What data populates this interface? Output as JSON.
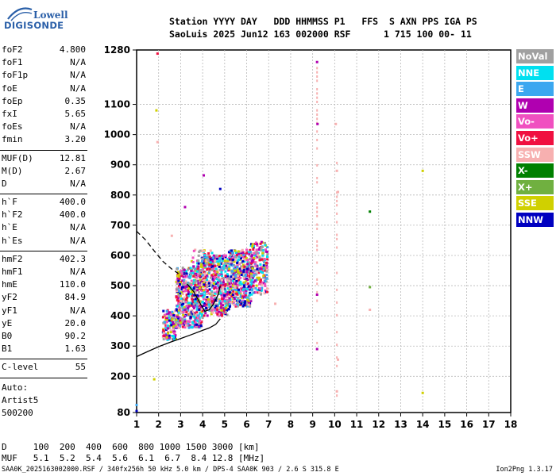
{
  "logo": {
    "line1": "Lowell",
    "line2": "DIGISONDE"
  },
  "header": {
    "line1": "Station YYYY DAY   DDD HHMMSS P1   FFS  S AXN PPS IGA PS",
    "line2": "SaoLuis 2025 Jun12 163 002000 RSF      1 715 100 00- 11"
  },
  "params": [
    {
      "name": "foF2",
      "value": "4.800"
    },
    {
      "name": "foF1",
      "value": "N/A"
    },
    {
      "name": "foF1p",
      "value": "N/A"
    },
    {
      "name": "foE",
      "value": "N/A"
    },
    {
      "name": "foEp",
      "value": "0.35"
    },
    {
      "name": "fxI",
      "value": "5.65"
    },
    {
      "name": "foEs",
      "value": "N/A"
    },
    {
      "name": "fmin",
      "value": "3.20"
    },
    {
      "sep": true
    },
    {
      "name": "MUF(D)",
      "value": "12.81"
    },
    {
      "name": "M(D)",
      "value": "2.67"
    },
    {
      "name": "D",
      "value": "N/A"
    },
    {
      "sep": true
    },
    {
      "name": "h`F",
      "value": "400.0"
    },
    {
      "name": "h`F2",
      "value": "400.0"
    },
    {
      "name": "h`E",
      "value": "N/A"
    },
    {
      "name": "h`Es",
      "value": "N/A"
    },
    {
      "sep": true
    },
    {
      "name": "hmF2",
      "value": "402.3"
    },
    {
      "name": "hmF1",
      "value": "N/A"
    },
    {
      "name": "hmE",
      "value": "110.0"
    },
    {
      "name": "yF2",
      "value": "84.9"
    },
    {
      "name": "yF1",
      "value": "N/A"
    },
    {
      "name": "yE",
      "value": "20.0"
    },
    {
      "name": "B0",
      "value": "90.2"
    },
    {
      "name": "B1",
      "value": "1.63"
    },
    {
      "sep": true
    },
    {
      "name": "C-level",
      "value": "55"
    },
    {
      "sep": true
    }
  ],
  "auto": {
    "line1": "Auto:",
    "line2": "Artist5",
    "line3": "500200"
  },
  "legend": [
    {
      "label": "NoVal",
      "color": "#a0a0a0"
    },
    {
      "label": "NNE",
      "color": "#00e0f0"
    },
    {
      "label": "E",
      "color": "#3ba7f0"
    },
    {
      "label": "W",
      "color": "#b000b0"
    },
    {
      "label": "Vo-",
      "color": "#f050c0"
    },
    {
      "label": "Vo+",
      "color": "#f01040"
    },
    {
      "label": "SSW",
      "color": "#f7b0b0"
    },
    {
      "label": "X-",
      "color": "#008000"
    },
    {
      "label": "X+",
      "color": "#70b040"
    },
    {
      "label": "SSE",
      "color": "#d0d000"
    },
    {
      "label": "NNW",
      "color": "#0000c0"
    }
  ],
  "muf_table": {
    "line1": "D     100  200  400  600  800 1000 1500 3000 [km]",
    "line2": "MUF   5.1  5.2  5.4  5.6  6.1  6.7  8.4 12.8 [MHz]"
  },
  "footer": {
    "left": "SAA0K_2025163002000.RSF / 340fx256h 50 kHz 5.0 km / DPS-4 SAA0K 903 / 2.6 S 315.8 E",
    "right": "Ion2Png 1.3.17"
  },
  "chart_data": {
    "type": "scatter",
    "title": "",
    "xlabel": "",
    "ylabel": "",
    "xlim": [
      1,
      18
    ],
    "ylim": [
      80,
      1280
    ],
    "x_ticks": [
      1,
      2,
      3,
      4,
      5,
      6,
      7,
      8,
      9,
      10,
      11,
      12,
      13,
      14,
      15,
      16,
      17,
      18
    ],
    "y_ticks": [
      80,
      200,
      300,
      400,
      500,
      600,
      700,
      800,
      900,
      1000,
      1100,
      1280
    ],
    "grid": true,
    "legend": "right",
    "clusters": [
      {
        "x": [
          2.2,
          2.8
        ],
        "y": [
          320,
          420
        ],
        "count": 140
      },
      {
        "x": [
          2.8,
          4.0
        ],
        "y": [
          360,
          560
        ],
        "count": 520
      },
      {
        "x": [
          4.0,
          5.2
        ],
        "y": [
          400,
          600
        ],
        "count": 520
      },
      {
        "x": [
          5.2,
          6.2
        ],
        "y": [
          430,
          620
        ],
        "count": 420
      },
      {
        "x": [
          6.2,
          6.95
        ],
        "y": [
          470,
          645
        ],
        "count": 220
      },
      {
        "x": [
          3.5,
          4.5
        ],
        "y": [
          550,
          620
        ],
        "count": 60
      }
    ],
    "sparse_points": [
      {
        "x": 1.95,
        "y": 1268,
        "color": "#f01040"
      },
      {
        "x": 1.9,
        "y": 1080,
        "color": "#d0d000"
      },
      {
        "x": 1.95,
        "y": 975,
        "color": "#f7b0b0"
      },
      {
        "x": 4.05,
        "y": 865,
        "color": "#b000b0"
      },
      {
        "x": 4.8,
        "y": 820,
        "color": "#0000c0"
      },
      {
        "x": 3.2,
        "y": 760,
        "color": "#b000b0"
      },
      {
        "x": 2.6,
        "y": 665,
        "color": "#f7b0b0"
      },
      {
        "x": 9.2,
        "y": 1240,
        "color": "#b000b0"
      },
      {
        "x": 9.22,
        "y": 1035,
        "color": "#b000b0"
      },
      {
        "x": 9.2,
        "y": 470,
        "color": "#b000b0"
      },
      {
        "x": 9.2,
        "y": 290,
        "color": "#b000b0"
      },
      {
        "x": 10.05,
        "y": 1035,
        "color": "#f7b0b0"
      },
      {
        "x": 10.1,
        "y": 880,
        "color": "#f7b0b0"
      },
      {
        "x": 10.15,
        "y": 810,
        "color": "#f7b0b0"
      },
      {
        "x": 10.15,
        "y": 255,
        "color": "#f7b0b0"
      },
      {
        "x": 10.1,
        "y": 150,
        "color": "#f7b0b0"
      },
      {
        "x": 11.6,
        "y": 745,
        "color": "#008000"
      },
      {
        "x": 11.6,
        "y": 495,
        "color": "#70b040"
      },
      {
        "x": 11.6,
        "y": 420,
        "color": "#f7b0b0"
      },
      {
        "x": 14.0,
        "y": 880,
        "color": "#d0d000"
      },
      {
        "x": 14.0,
        "y": 145,
        "color": "#d0d000"
      },
      {
        "x": 1.8,
        "y": 190,
        "color": "#d0d000"
      },
      {
        "x": 1.0,
        "y": 85,
        "color": "#0000c0"
      },
      {
        "x": 1.0,
        "y": 105,
        "color": "#3ba7f0"
      },
      {
        "x": 7.3,
        "y": 440,
        "color": "#f7b0b0"
      }
    ],
    "vertical_streaks": [
      {
        "x": 9.2,
        "y": [
          300,
          1230
        ],
        "color": "#f7b0b0"
      },
      {
        "x": 10.1,
        "y": [
          140,
          920
        ],
        "color": "#f7b0b0"
      }
    ],
    "profile_curve": {
      "x": [
        1.0,
        1.5,
        2.0,
        2.5,
        3.0,
        3.5,
        4.0,
        4.3,
        4.6,
        4.8
      ],
      "y": [
        265,
        282,
        298,
        312,
        325,
        338,
        352,
        360,
        372,
        390
      ]
    },
    "dashed_curve": {
      "x": [
        1.0,
        1.4,
        1.8,
        2.2,
        2.6,
        2.9
      ],
      "y": [
        680,
        652,
        615,
        580,
        555,
        540
      ]
    },
    "trace_curve": {
      "x": [
        3.3,
        3.6,
        3.9,
        4.1,
        4.3,
        4.5,
        4.7,
        4.8
      ],
      "y": [
        505,
        480,
        440,
        415,
        420,
        440,
        470,
        500
      ]
    }
  }
}
